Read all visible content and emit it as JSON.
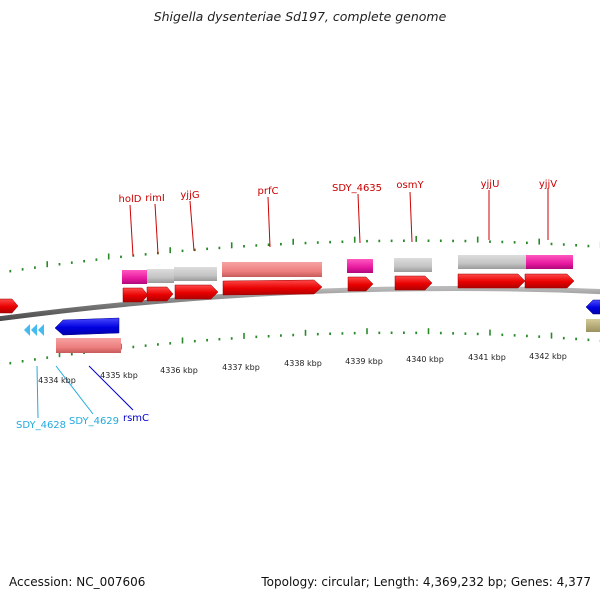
{
  "title": "Shigella dysenteriae Sd197, complete genome",
  "accession": "Accession: NC_007606",
  "topology": "Topology: circular; Length: 4,369,232 bp; Genes: 4,377",
  "scale": {
    "labels": [
      "4334 kbp",
      "4335 kbp",
      "4336 kbp",
      "4337 kbp",
      "4338 kbp",
      "4339 kbp",
      "4340 kbp",
      "4341 kbp",
      "4342 kbp"
    ]
  },
  "top_gene_labels": [
    "holD",
    "rimI",
    "yjjG",
    "prfC",
    "SDY_4635",
    "osmY",
    "yjjU",
    "yjjV"
  ],
  "bottom_gene_labels": [
    "SDY_4628",
    "SDY_4629",
    "rsmC"
  ],
  "colors": {
    "forward_cds": "#ee1111",
    "reverse_cds": "#1111ee",
    "label_forward": "#cc0000",
    "label_reverse_blue": "#0000cc",
    "label_reverse_cyan": "#22aadd",
    "tick": "#2a8a2a",
    "backbone": "#888888"
  }
}
